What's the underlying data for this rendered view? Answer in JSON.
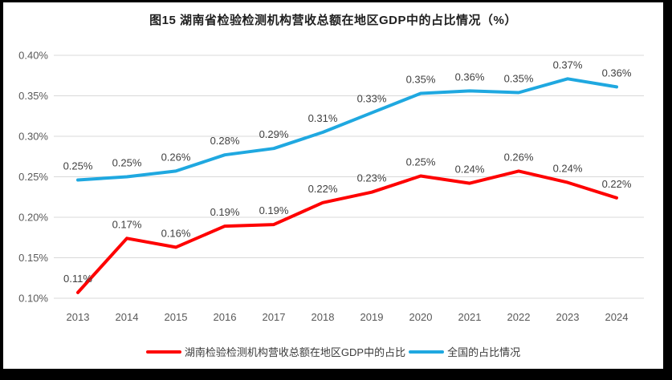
{
  "window": {
    "frame_color": "#000000",
    "background_color": "#ffffff"
  },
  "chart_data": {
    "type": "line",
    "title": "图15 湖南省检验检测机构营收总额在地区GDP中的占比情况（%）",
    "categories": [
      "2013",
      "2014",
      "2015",
      "2016",
      "2017",
      "2018",
      "2019",
      "2020",
      "2021",
      "2022",
      "2023",
      "2024"
    ],
    "ylim": [
      0.1,
      0.4
    ],
    "y_ticks": [
      {
        "value": 0.4,
        "label": "0.40%"
      },
      {
        "value": 0.35,
        "label": "0.35%"
      },
      {
        "value": 0.3,
        "label": "0.30%"
      },
      {
        "value": 0.25,
        "label": "0.25%"
      },
      {
        "value": 0.2,
        "label": "0.20%"
      },
      {
        "value": 0.15,
        "label": "0.15%"
      },
      {
        "value": 0.1,
        "label": "0.10%"
      }
    ],
    "grid": "horizontal",
    "legend_position": "bottom",
    "series": [
      {
        "name": "湖南检验检测机构营收总额在地区GDP中的占比",
        "color": "#fe0000",
        "labels": [
          "0.11%",
          "0.17%",
          "0.16%",
          "0.19%",
          "0.19%",
          "0.22%",
          "0.23%",
          "0.25%",
          "0.24%",
          "0.26%",
          "0.24%",
          "0.22%"
        ],
        "values": [
          0.107,
          0.174,
          0.163,
          0.189,
          0.191,
          0.218,
          0.231,
          0.251,
          0.242,
          0.257,
          0.243,
          0.224
        ]
      },
      {
        "name": "全国的占比情况",
        "color": "#1fa8e0",
        "labels": [
          "0.25%",
          "0.25%",
          "0.26%",
          "0.28%",
          "0.29%",
          "0.31%",
          "0.33%",
          "0.35%",
          "0.36%",
          "0.35%",
          "0.37%",
          "0.36%"
        ],
        "values": [
          0.246,
          0.25,
          0.257,
          0.277,
          0.285,
          0.305,
          0.329,
          0.353,
          0.356,
          0.354,
          0.371,
          0.361
        ]
      }
    ]
  },
  "legend": {
    "items": [
      {
        "label": "湖南检验检测机构营收总额在地区GDP中的占比",
        "color": "#fe0000"
      },
      {
        "label": "全国的占比情况",
        "color": "#1fa8e0"
      }
    ]
  }
}
